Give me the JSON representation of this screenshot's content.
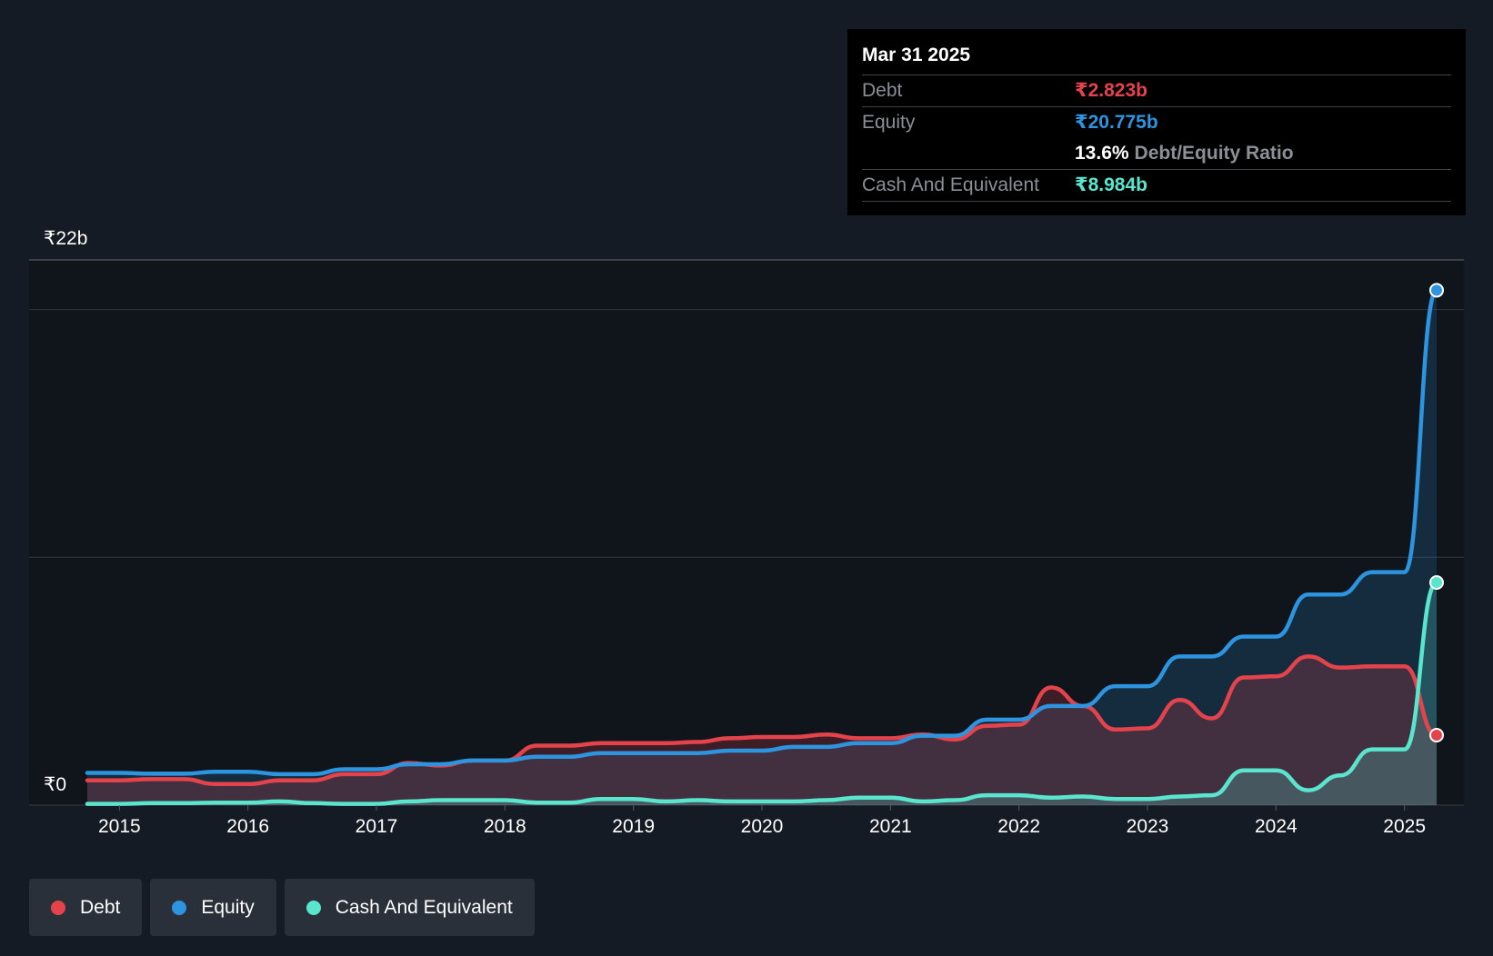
{
  "chart_data": {
    "type": "line",
    "title": "",
    "y_top_label": "₹22b",
    "y_zero_label": "₹0",
    "ylim": [
      0,
      22
    ],
    "y_unit": "₹b",
    "xlim": [
      2014.75,
      2025.25
    ],
    "x_ticks": [
      "2015",
      "2016",
      "2017",
      "2018",
      "2019",
      "2020",
      "2021",
      "2022",
      "2023",
      "2024",
      "2025"
    ],
    "grid": true,
    "legend_position": "bottom-left",
    "series": [
      {
        "name": "Debt",
        "color": "#e5434c",
        "x": [
          2014.75,
          2015.0,
          2015.25,
          2015.5,
          2015.75,
          2016.0,
          2016.25,
          2016.5,
          2016.75,
          2017.0,
          2017.25,
          2017.5,
          2017.75,
          2018.0,
          2018.25,
          2018.5,
          2018.75,
          2019.0,
          2019.25,
          2019.5,
          2019.75,
          2020.0,
          2020.25,
          2020.5,
          2020.75,
          2021.0,
          2021.25,
          2021.5,
          2021.75,
          2022.0,
          2022.25,
          2022.5,
          2022.75,
          2023.0,
          2023.25,
          2023.5,
          2023.75,
          2024.0,
          2024.25,
          2024.5,
          2024.75,
          2025.0,
          2025.25
        ],
        "values": [
          1.0,
          1.0,
          1.05,
          1.05,
          0.85,
          0.85,
          1.0,
          1.0,
          1.25,
          1.25,
          1.7,
          1.6,
          1.8,
          1.8,
          2.4,
          2.4,
          2.5,
          2.5,
          2.5,
          2.55,
          2.7,
          2.75,
          2.75,
          2.85,
          2.7,
          2.7,
          2.85,
          2.65,
          3.2,
          3.25,
          4.75,
          4.0,
          3.05,
          3.1,
          4.25,
          3.5,
          5.15,
          5.2,
          6.0,
          5.55,
          5.6,
          5.6,
          2.823
        ]
      },
      {
        "name": "Equity",
        "color": "#2d94e0",
        "x": [
          2014.75,
          2015.0,
          2015.25,
          2015.5,
          2015.75,
          2016.0,
          2016.25,
          2016.5,
          2016.75,
          2017.0,
          2017.25,
          2017.5,
          2017.75,
          2018.0,
          2018.25,
          2018.5,
          2018.75,
          2019.0,
          2019.25,
          2019.5,
          2019.75,
          2020.0,
          2020.25,
          2020.5,
          2020.75,
          2021.0,
          2021.25,
          2021.5,
          2021.75,
          2022.0,
          2022.25,
          2022.5,
          2022.75,
          2023.0,
          2023.25,
          2023.5,
          2023.75,
          2024.0,
          2024.25,
          2024.5,
          2024.75,
          2025.0,
          2025.25
        ],
        "values": [
          1.3,
          1.3,
          1.27,
          1.27,
          1.35,
          1.35,
          1.25,
          1.25,
          1.45,
          1.45,
          1.65,
          1.65,
          1.8,
          1.8,
          1.95,
          1.95,
          2.1,
          2.1,
          2.1,
          2.1,
          2.2,
          2.2,
          2.35,
          2.35,
          2.5,
          2.5,
          2.8,
          2.8,
          3.45,
          3.45,
          4.0,
          4.0,
          4.8,
          4.8,
          6.0,
          6.0,
          6.8,
          6.8,
          8.5,
          8.5,
          9.4,
          9.4,
          20.775
        ]
      },
      {
        "name": "Cash And Equivalent",
        "color": "#5ae5cf",
        "x": [
          2014.75,
          2015.0,
          2015.25,
          2015.5,
          2015.75,
          2016.0,
          2016.25,
          2016.5,
          2016.75,
          2017.0,
          2017.25,
          2017.5,
          2017.75,
          2018.0,
          2018.25,
          2018.5,
          2018.75,
          2019.0,
          2019.25,
          2019.5,
          2019.75,
          2020.0,
          2020.25,
          2020.5,
          2020.75,
          2021.0,
          2021.25,
          2021.5,
          2021.75,
          2022.0,
          2022.25,
          2022.5,
          2022.75,
          2023.0,
          2023.25,
          2023.5,
          2023.75,
          2024.0,
          2024.25,
          2024.5,
          2024.75,
          2025.0,
          2025.25
        ],
        "values": [
          0.05,
          0.05,
          0.08,
          0.08,
          0.1,
          0.1,
          0.15,
          0.08,
          0.05,
          0.05,
          0.15,
          0.2,
          0.2,
          0.2,
          0.1,
          0.1,
          0.25,
          0.25,
          0.15,
          0.2,
          0.15,
          0.15,
          0.15,
          0.2,
          0.3,
          0.3,
          0.15,
          0.2,
          0.4,
          0.4,
          0.3,
          0.35,
          0.25,
          0.25,
          0.35,
          0.4,
          1.4,
          1.4,
          0.6,
          1.2,
          2.25,
          2.25,
          8.984
        ]
      }
    ]
  },
  "tooltip": {
    "date": "Mar 31 2025",
    "debt_label": "Debt",
    "debt_value": "₹2.823b",
    "equity_label": "Equity",
    "equity_value": "₹20.775b",
    "ratio_value": "13.6%",
    "ratio_label": "Debt/Equity Ratio",
    "cash_label": "Cash And Equivalent",
    "cash_value": "₹8.984b"
  },
  "legend": {
    "items": [
      {
        "label": "Debt",
        "color": "#e5434c"
      },
      {
        "label": "Equity",
        "color": "#2d94e0"
      },
      {
        "label": "Cash And Equivalent",
        "color": "#5ae5cf"
      }
    ]
  }
}
